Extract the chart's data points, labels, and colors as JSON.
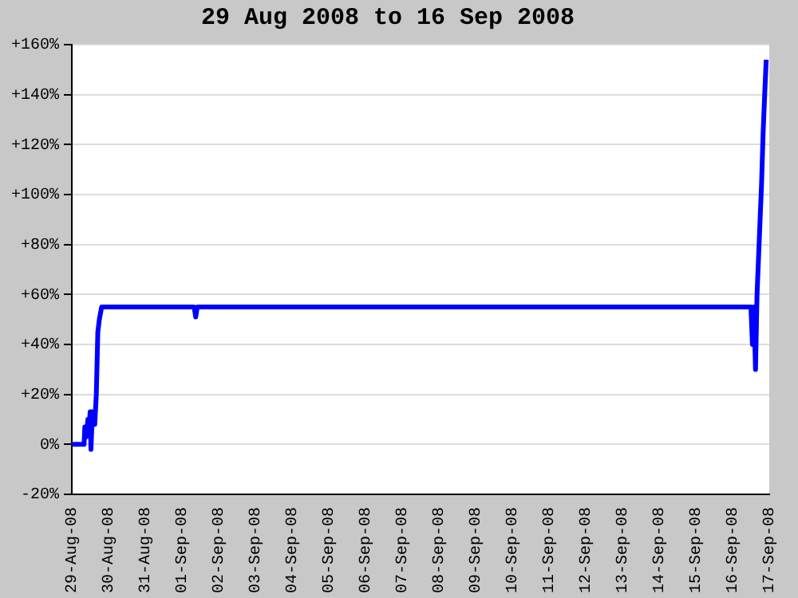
{
  "chart_data": {
    "type": "line",
    "title": "29 Aug 2008 to 16 Sep 2008",
    "x": [
      "2008-08-29T00:00",
      "2008-08-29T08:00",
      "2008-08-29T08:30",
      "2008-08-29T09:30",
      "2008-08-29T10:30",
      "2008-08-29T11:00",
      "2008-08-29T12:00",
      "2008-08-29T12:30",
      "2008-08-29T13:30",
      "2008-08-29T15:00",
      "2008-08-29T16:00",
      "2008-08-29T17:00",
      "2008-08-29T18:00",
      "2008-08-29T19:30",
      "2008-09-01T08:00",
      "2008-09-01T09:00",
      "2008-09-01T10:00",
      "2008-09-16T12:00",
      "2008-09-16T13:00",
      "2008-09-16T14:00",
      "2008-09-16T15:00",
      "2008-09-16T16:00",
      "2008-09-16T17:00",
      "2008-09-16T18:00",
      "2008-09-16T19:00",
      "2008-09-16T20:00",
      "2008-09-16T21:00",
      "2008-09-16T22:00"
    ],
    "series": [
      {
        "color": "#0000ff",
        "values": [
          0,
          0,
          7,
          3,
          10,
          5,
          13,
          -2,
          13,
          8,
          20,
          45,
          50,
          55,
          55,
          51,
          55,
          55,
          40,
          55,
          30,
          60,
          75,
          90,
          105,
          125,
          140,
          154
        ]
      }
    ],
    "xlim": [
      "2008-08-29",
      "2008-09-17"
    ],
    "xticks": [
      {
        "value": "2008-08-29",
        "label": "29-Aug-08"
      },
      {
        "value": "2008-08-30",
        "label": "30-Aug-08"
      },
      {
        "value": "2008-08-31",
        "label": "31-Aug-08"
      },
      {
        "value": "2008-09-01",
        "label": "01-Sep-08"
      },
      {
        "value": "2008-09-02",
        "label": "02-Sep-08"
      },
      {
        "value": "2008-09-03",
        "label": "03-Sep-08"
      },
      {
        "value": "2008-09-04",
        "label": "04-Sep-08"
      },
      {
        "value": "2008-09-05",
        "label": "05-Sep-08"
      },
      {
        "value": "2008-09-06",
        "label": "06-Sep-08"
      },
      {
        "value": "2008-09-07",
        "label": "07-Sep-08"
      },
      {
        "value": "2008-09-08",
        "label": "08-Sep-08"
      },
      {
        "value": "2008-09-09",
        "label": "09-Sep-08"
      },
      {
        "value": "2008-09-10",
        "label": "10-Sep-08"
      },
      {
        "value": "2008-09-11",
        "label": "11-Sep-08"
      },
      {
        "value": "2008-09-12",
        "label": "12-Sep-08"
      },
      {
        "value": "2008-09-13",
        "label": "13-Sep-08"
      },
      {
        "value": "2008-09-14",
        "label": "14-Sep-08"
      },
      {
        "value": "2008-09-15",
        "label": "15-Sep-08"
      },
      {
        "value": "2008-09-16",
        "label": "16-Sep-08"
      },
      {
        "value": "2008-09-17",
        "label": "17-Sep-08"
      }
    ],
    "ylim": [
      -20,
      160
    ],
    "yticks": [
      {
        "value": -20,
        "label": "-20%"
      },
      {
        "value": 0,
        "label": "0%"
      },
      {
        "value": 20,
        "label": "+20%"
      },
      {
        "value": 40,
        "label": "+40%"
      },
      {
        "value": 60,
        "label": "+60%"
      },
      {
        "value": 80,
        "label": "+80%"
      },
      {
        "value": 100,
        "label": "+100%"
      },
      {
        "value": 120,
        "label": "+120%"
      },
      {
        "value": 140,
        "label": "+140%"
      },
      {
        "value": 160,
        "label": "+160%"
      }
    ],
    "grid": "y",
    "marker": "none",
    "line_style": "solid"
  }
}
